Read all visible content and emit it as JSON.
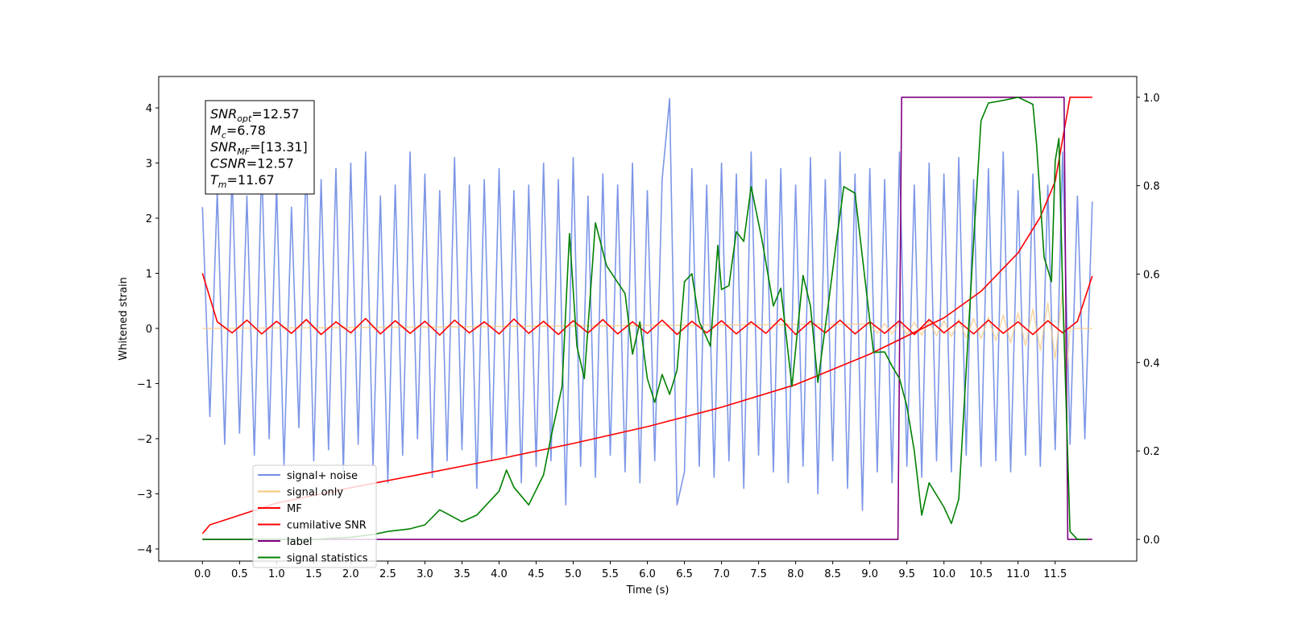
{
  "chart_data": {
    "type": "line",
    "xlabel": "Time (s)",
    "ylabel": "Whitened strain",
    "xlim": [
      -0.59,
      12.6
    ],
    "ylim": [
      -4.22,
      4.57
    ],
    "y2lim": [
      -0.049,
      1.047
    ],
    "xticks": [
      {
        "value": 0,
        "label": "0.0"
      },
      0.5,
      {
        "value": 1,
        "label": "1.0"
      },
      1.5,
      {
        "value": 2,
        "label": "2.0"
      },
      2.5,
      {
        "value": 3,
        "label": "3.0"
      },
      3.5,
      {
        "value": 4,
        "label": "4.0"
      },
      4.5,
      {
        "value": 5,
        "label": "5.0"
      },
      5.5,
      {
        "value": 6,
        "label": "6.0"
      },
      6.5,
      {
        "value": 7,
        "label": "7.0"
      },
      7.5,
      {
        "value": 8,
        "label": "8.0"
      },
      8.5,
      {
        "value": 9,
        "label": "9.0"
      },
      9.5,
      {
        "value": 10,
        "label": "10.0"
      },
      10.5,
      {
        "value": 11,
        "label": "11.0"
      },
      11.5
    ],
    "yticks": [
      {
        "value": -4,
        "label": "−4"
      },
      {
        "value": -3,
        "label": "−3"
      },
      {
        "value": -2,
        "label": "−2"
      },
      {
        "value": -1,
        "label": "−1"
      },
      0,
      1,
      2,
      3,
      4
    ],
    "y2ticks": [
      {
        "value": 0,
        "label": "0.0"
      },
      0.2,
      0.4,
      0.6,
      0.8,
      {
        "value": 1,
        "label": "1.0"
      }
    ],
    "legend_loc": "lower left",
    "textbox": [
      {
        "symbol": "SNR",
        "sub": "opt",
        "rest": "=12.57"
      },
      {
        "symbol": "M",
        "sub": "c",
        "rest": "=6.78"
      },
      {
        "symbol": "SNR",
        "sub": "MF",
        "rest": "=[13.31]"
      },
      {
        "symbol": "CSNR",
        "rest": "=12.57"
      },
      {
        "symbol": "T",
        "sub": "m",
        "rest": "=11.67"
      }
    ],
    "series": [
      {
        "name": "signal+ noise",
        "color": "#7590e6",
        "axis": "y",
        "x": [
          0,
          0.1,
          0.2,
          0.3,
          0.4,
          0.5,
          0.6,
          0.7,
          0.8,
          0.9,
          1,
          1.1,
          1.2,
          1.3,
          1.4,
          1.5,
          1.6,
          1.7,
          1.8,
          1.9,
          2,
          2.1,
          2.2,
          2.3,
          2.4,
          2.5,
          2.6,
          2.7,
          2.8,
          2.9,
          3,
          3.1,
          3.2,
          3.3,
          3.4,
          3.5,
          3.6,
          3.7,
          3.8,
          3.9,
          4,
          4.1,
          4.2,
          4.3,
          4.4,
          4.5,
          4.6,
          4.7,
          4.8,
          4.9,
          5,
          5.1,
          5.2,
          5.3,
          5.4,
          5.5,
          5.6,
          5.7,
          5.8,
          5.9,
          6,
          6.1,
          6.2,
          6.3,
          6.4,
          6.5,
          6.6,
          6.7,
          6.8,
          6.9,
          7,
          7.1,
          7.2,
          7.3,
          7.4,
          7.5,
          7.6,
          7.7,
          7.8,
          7.9,
          8,
          8.1,
          8.2,
          8.3,
          8.4,
          8.5,
          8.6,
          8.7,
          8.8,
          8.9,
          9,
          9.1,
          9.2,
          9.3,
          9.4,
          9.5,
          9.6,
          9.7,
          9.8,
          9.9,
          10,
          10.1,
          10.2,
          10.3,
          10.4,
          10.5,
          10.6,
          10.7,
          10.8,
          10.9,
          11,
          11.1,
          11.2,
          11.3,
          11.4,
          11.5,
          11.6,
          11.7,
          11.8,
          11.9,
          12
        ],
        "values": [
          2.2,
          -1.6,
          2.5,
          -2.1,
          2.8,
          -1.9,
          2.4,
          -2.3,
          3.0,
          -2.0,
          2.6,
          -2.5,
          2.2,
          -1.8,
          3.1,
          -2.4,
          2.7,
          -2.2,
          2.9,
          -2.6,
          3.0,
          -2.1,
          3.2,
          -2.5,
          2.4,
          -2.8,
          2.6,
          -2.3,
          3.2,
          -2.0,
          2.8,
          -2.7,
          2.5,
          -2.4,
          3.1,
          -2.2,
          2.6,
          -2.9,
          2.7,
          -2.4,
          2.9,
          -2.3,
          2.5,
          -2.8,
          2.6,
          -2.5,
          3.0,
          -2.4,
          2.7,
          -3.2,
          3.1,
          -2.5,
          2.4,
          -2.7,
          2.8,
          -2.3,
          2.6,
          -2.6,
          3.0,
          -2.8,
          2.5,
          -2.4,
          2.7,
          4.17,
          -3.2,
          -2.6,
          2.9,
          -2.5,
          2.6,
          -2.7,
          3.0,
          -2.4,
          2.8,
          -2.9,
          3.2,
          -2.3,
          2.7,
          -2.6,
          2.9,
          -2.8,
          2.6,
          -2.5,
          3.1,
          -3.0,
          2.7,
          -2.4,
          3.2,
          -2.9,
          2.8,
          -3.3,
          2.9,
          -2.6,
          2.7,
          -2.8,
          3.2,
          -2.5,
          2.6,
          -2.7,
          3.0,
          -2.4,
          2.8,
          -2.6,
          3.1,
          -2.3,
          2.7,
          -2.5,
          2.9,
          -2.4,
          3.2,
          -2.6,
          2.5,
          -2.3,
          2.8,
          -2.5,
          2.6,
          -2.2,
          3.2,
          -2.1,
          2.4,
          -2.0,
          2.3
        ]
      },
      {
        "name": "signal only",
        "color": "#f5c77e",
        "axis": "y",
        "x": [
          0,
          9,
          9.1,
          9.2,
          9.3,
          9.4,
          9.5,
          9.6,
          9.7,
          9.8,
          9.9,
          10,
          10.1,
          10.2,
          10.3,
          10.4,
          10.5,
          10.6,
          10.7,
          10.8,
          10.9,
          11,
          11.1,
          11.2,
          11.3,
          11.4,
          11.5,
          11.6,
          11.65,
          11.7,
          12
        ],
        "values": [
          0,
          0.08,
          -0.09,
          0.09,
          -0.1,
          0.1,
          -0.11,
          0.11,
          -0.12,
          0.13,
          -0.13,
          0.14,
          -0.15,
          0.16,
          -0.17,
          0.18,
          -0.19,
          0.2,
          -0.22,
          0.24,
          -0.26,
          0.28,
          -0.31,
          0.35,
          -0.4,
          0.46,
          -0.55,
          0.68,
          -0.8,
          0,
          0
        ]
      },
      {
        "name": "MF",
        "color": "#ff0000",
        "axis": "y",
        "x": [
          0,
          0.2,
          0.4,
          0.6,
          0.8,
          1,
          1.2,
          1.4,
          1.6,
          1.8,
          2,
          2.2,
          2.4,
          2.6,
          2.8,
          3,
          3.2,
          3.4,
          3.6,
          3.8,
          4,
          4.2,
          4.4,
          4.6,
          4.8,
          5,
          5.2,
          5.4,
          5.6,
          5.8,
          6,
          6.2,
          6.4,
          6.6,
          6.8,
          7,
          7.2,
          7.4,
          7.6,
          7.8,
          8,
          8.2,
          8.4,
          8.6,
          8.8,
          9,
          9.2,
          9.4,
          9.6,
          9.8,
          10,
          10.2,
          10.4,
          10.6,
          10.8,
          11,
          11.2,
          11.4,
          11.6,
          11.8,
          12
        ],
        "values": [
          1.0,
          0.12,
          -0.08,
          0.15,
          -0.1,
          0.13,
          -0.09,
          0.16,
          -0.11,
          0.12,
          -0.08,
          0.18,
          -0.1,
          0.14,
          -0.09,
          0.13,
          -0.12,
          0.15,
          -0.08,
          0.12,
          -0.1,
          0.17,
          -0.09,
          0.13,
          -0.11,
          0.14,
          -0.08,
          0.16,
          -0.1,
          0.12,
          -0.09,
          0.15,
          -0.11,
          0.13,
          -0.08,
          0.14,
          -0.1,
          0.12,
          -0.09,
          0.18,
          -0.11,
          0.13,
          -0.08,
          0.15,
          -0.1,
          0.12,
          -0.09,
          0.14,
          -0.11,
          0.16,
          -0.08,
          0.13,
          -0.1,
          0.15,
          -0.09,
          0.12,
          -0.11,
          0.14,
          -0.08,
          0.13,
          0.95
        ]
      },
      {
        "name": "cumilative SNR",
        "color": "#ff0000",
        "axis": "y2",
        "x": [
          0,
          0.1,
          1,
          2,
          3,
          4,
          5,
          6,
          7,
          8,
          9,
          10,
          10.5,
          11,
          11.3,
          11.5,
          11.7,
          12
        ],
        "values": [
          0.013,
          0.033,
          0.082,
          0.117,
          0.149,
          0.182,
          0.217,
          0.255,
          0.299,
          0.35,
          0.419,
          0.501,
          0.561,
          0.648,
          0.729,
          0.81,
          1.0,
          1.0
        ]
      },
      {
        "name": "label",
        "color": "#800080",
        "axis": "y2",
        "x": [
          0,
          9.38,
          9.43,
          11.62,
          11.67,
          12
        ],
        "values": [
          0,
          0,
          1,
          1,
          0,
          0
        ]
      },
      {
        "name": "signal statistics",
        "color": "#008000",
        "axis": "y2",
        "x": [
          0,
          0.5,
          1,
          1.5,
          2,
          2.3,
          2.5,
          2.8,
          3,
          3.2,
          3.5,
          3.7,
          4,
          4.1,
          4.2,
          4.4,
          4.6,
          4.7,
          4.85,
          4.95,
          5.05,
          5.15,
          5.3,
          5.45,
          5.7,
          5.8,
          5.9,
          6,
          6.1,
          6.2,
          6.3,
          6.4,
          6.5,
          6.6,
          6.7,
          6.85,
          6.95,
          7,
          7.1,
          7.2,
          7.3,
          7.4,
          7.55,
          7.7,
          7.8,
          7.95,
          8.1,
          8.2,
          8.3,
          8.45,
          8.55,
          8.65,
          8.8,
          8.9,
          9.05,
          9.2,
          9.3,
          9.4,
          9.5,
          9.6,
          9.7,
          9.8,
          10,
          10.1,
          10.2,
          10.3,
          10.4,
          10.5,
          10.6,
          10.8,
          11,
          11.2,
          11.25,
          11.35,
          11.45,
          11.5,
          11.55,
          11.6,
          11.7,
          11.8,
          11.93
        ],
        "values": [
          0,
          0,
          0,
          0,
          0.005,
          0.011,
          0.018,
          0.024,
          0.033,
          0.067,
          0.04,
          0.055,
          0.109,
          0.157,
          0.118,
          0.078,
          0.146,
          0.231,
          0.346,
          0.692,
          0.437,
          0.364,
          0.716,
          0.619,
          0.556,
          0.419,
          0.492,
          0.364,
          0.31,
          0.373,
          0.328,
          0.383,
          0.583,
          0.601,
          0.492,
          0.437,
          0.665,
          0.565,
          0.574,
          0.696,
          0.674,
          0.798,
          0.674,
          0.528,
          0.568,
          0.346,
          0.597,
          0.528,
          0.355,
          0.543,
          0.674,
          0.798,
          0.783,
          0.638,
          0.423,
          0.424,
          0.392,
          0.364,
          0.301,
          0.2,
          0.055,
          0.128,
          0.073,
          0.036,
          0.091,
          0.383,
          0.674,
          0.947,
          0.987,
          0.993,
          1.0,
          0.984,
          0.893,
          0.638,
          0.583,
          0.856,
          0.907,
          0.565,
          0.018,
          0,
          0
        ]
      }
    ]
  }
}
